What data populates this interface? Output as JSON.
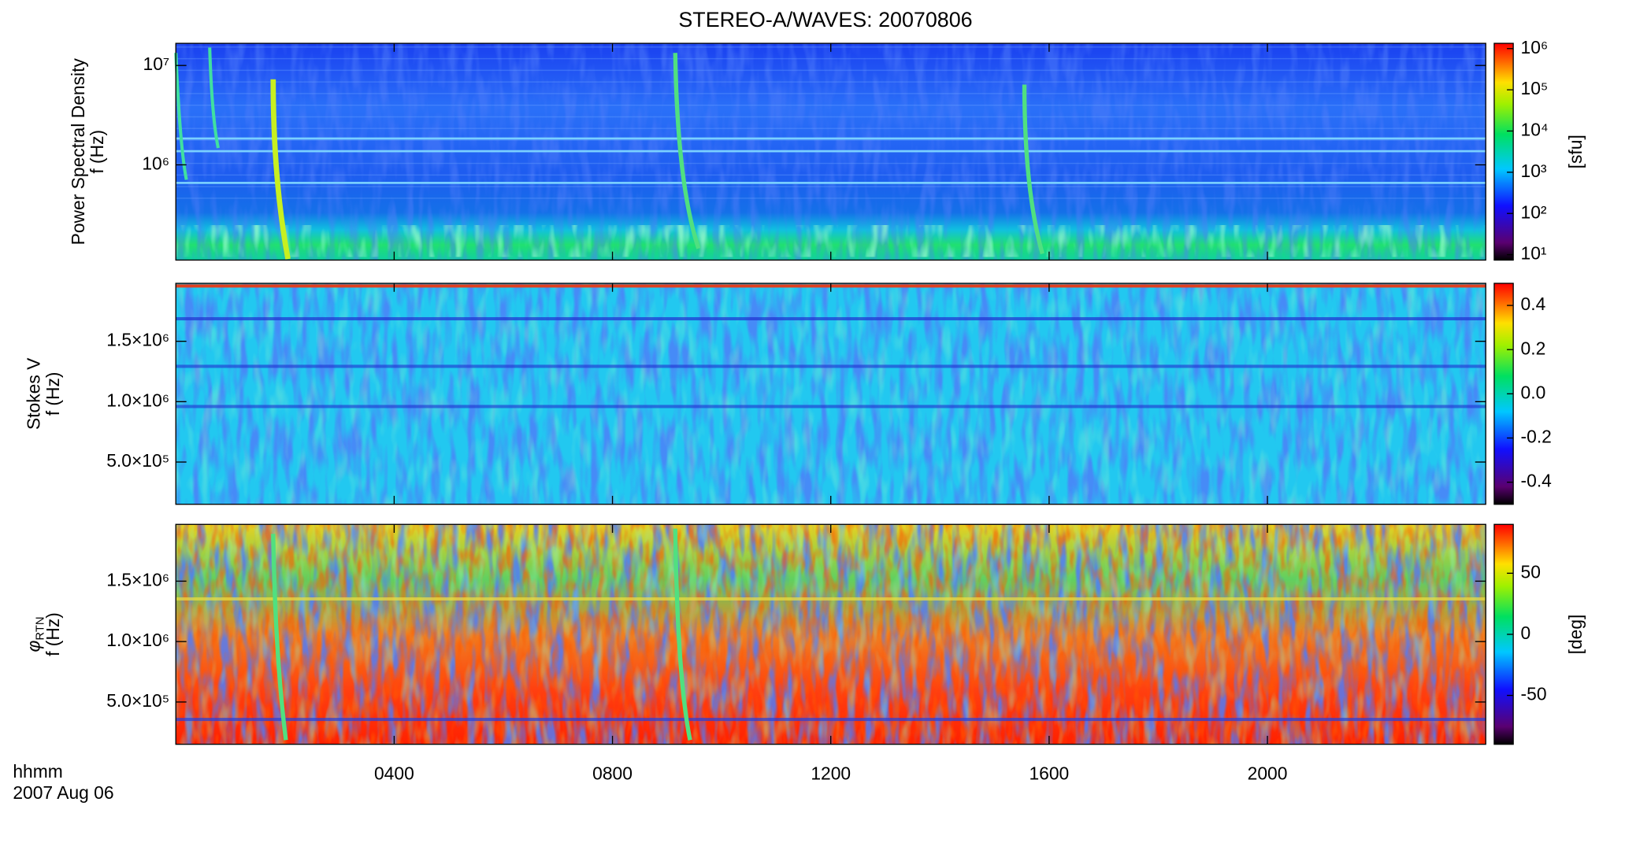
{
  "title": "STEREO-A/WAVES: 20070806",
  "x_axis": {
    "xlim": [
      0,
      24
    ],
    "xticks": [
      {
        "value": 4,
        "label": "0400"
      },
      {
        "value": 8,
        "label": "0800"
      },
      {
        "value": 12,
        "label": "1200"
      },
      {
        "value": 16,
        "label": "1600"
      },
      {
        "value": 20,
        "label": "2000"
      }
    ],
    "label_lines": [
      "hhmm",
      "2007 Aug 06"
    ]
  },
  "chart_data": [
    {
      "type": "heatmap",
      "ylabel": "Power Spectral Density",
      "ylabel2": "f (Hz)",
      "yscale": "log",
      "ylim": [
        110000,
        16700000
      ],
      "yticks": [
        {
          "value": 1000000,
          "label": "10⁶"
        },
        {
          "value": 10000000,
          "label": "10⁷"
        }
      ],
      "colorbar": {
        "label": "[sfu]",
        "scale": "log",
        "lim": [
          7.4,
          1340000
        ],
        "ticks": [
          {
            "value": 10,
            "label": "10¹"
          },
          {
            "value": 100,
            "label": "10²"
          },
          {
            "value": 1000,
            "label": "10³"
          },
          {
            "value": 10000,
            "label": "10⁴"
          },
          {
            "value": 100000,
            "label": "10⁵"
          },
          {
            "value": 1000000,
            "label": "10⁶"
          }
        ]
      }
    },
    {
      "type": "heatmap",
      "ylabel": "Stokes V",
      "ylabel2": "f (Hz)",
      "yscale": "linear",
      "ylim": [
        150000,
        1980000
      ],
      "yticks": [
        {
          "value": 500000,
          "label": "5.0×10⁵"
        },
        {
          "value": 1000000,
          "label": "1.0×10⁶"
        },
        {
          "value": 1500000,
          "label": "1.5×10⁶"
        }
      ],
      "colorbar": {
        "scale": "linear",
        "lim": [
          -0.5,
          0.5
        ],
        "ticks": [
          -0.4,
          -0.2,
          {
            "value": 0,
            "label": "0.0"
          },
          0.2,
          0.4
        ]
      }
    },
    {
      "type": "heatmap",
      "ylabel": "φ",
      "ylabel_subscript": "RTN",
      "ylabel2": "f (Hz)",
      "yscale": "linear",
      "ylim": [
        150000,
        1970000
      ],
      "yticks": [
        {
          "value": 500000,
          "label": "5.0×10⁵"
        },
        {
          "value": 1000000,
          "label": "1.0×10⁶"
        },
        {
          "value": 1500000,
          "label": "1.5×10⁶"
        }
      ],
      "colorbar": {
        "label": "[deg]",
        "scale": "linear",
        "lim": [
          -90,
          90
        ],
        "ticks": [
          -50,
          0,
          50
        ]
      }
    }
  ]
}
